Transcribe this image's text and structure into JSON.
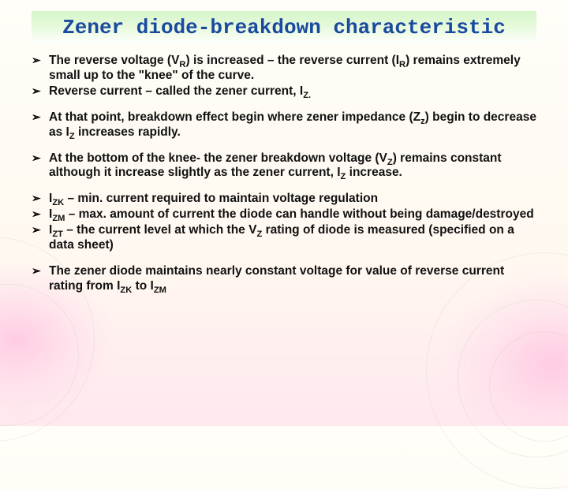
{
  "title": {
    "text": "Zener diode-breakdown characteristic",
    "font_family": "Courier New, monospace",
    "font_size_pt": 20,
    "font_weight": "bold",
    "color": "#1a4aa0",
    "background": "linear-gradient(to bottom, #d4f5c8 0%, #e8fadd 50%, #ffffff 100%)"
  },
  "body": {
    "font_family": "Arial, Helvetica, sans-serif",
    "font_size_pt": 12,
    "font_weight": "bold",
    "text_color": "#111111",
    "bullet_glyph": "➢",
    "bullet_color": "#000000"
  },
  "background": {
    "base_gradient": [
      "#fffef8",
      "#fff8f0",
      "#ffe8ee"
    ],
    "corner_glow_color": "#ffb4dc",
    "swirl_stroke": "rgba(200,200,190,0.25)"
  },
  "groups": [
    {
      "items": [
        "The reverse voltage (V<sub>R</sub>) is increased – the reverse current (I<sub>R</sub>) remains extremely small up to the \"knee\" of the curve.",
        "Reverse current – called the zener current, I<sub>Z.</sub>"
      ]
    },
    {
      "items": [
        "At that point, breakdown effect begin where zener impedance (Z<sub>z</sub>) begin to decrease as I<sub>Z</sub> increases rapidly."
      ]
    },
    {
      "items": [
        "At the bottom of the knee- the zener breakdown voltage (V<sub>Z</sub>) remains constant although it increase slightly as the zener current, I<sub>Z</sub> increase."
      ]
    },
    {
      "items": [
        "I<sub>ZK</sub> – min. current required to maintain voltage regulation",
        "I<sub>ZM</sub> – max. amount of current the diode can handle without being damage/destroyed",
        "I<sub>ZT</sub> – the current level at which the V<sub>Z</sub> rating of diode is measured (specified on a data sheet)"
      ]
    },
    {
      "items": [
        "The zener diode maintains nearly constant voltage for value of reverse current rating from I<sub>ZK</sub> to I<sub>ZM</sub>"
      ]
    }
  ]
}
